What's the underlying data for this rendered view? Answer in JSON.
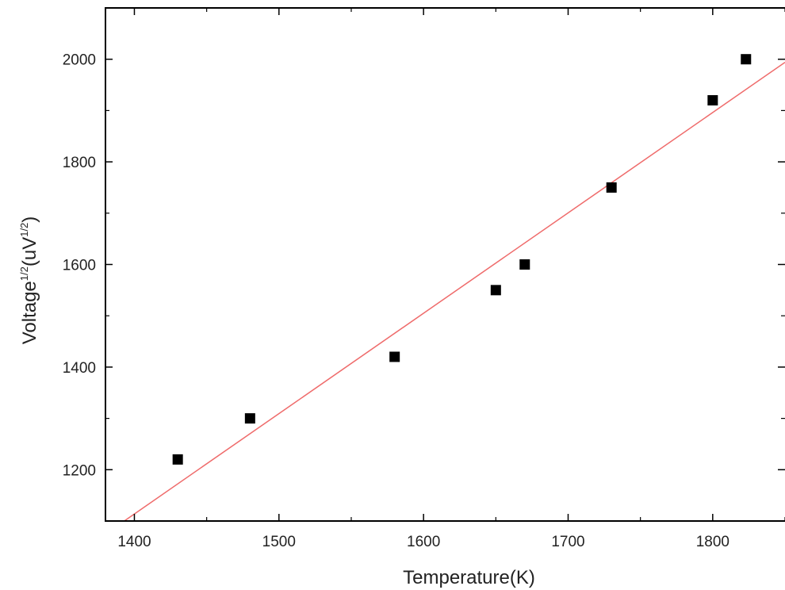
{
  "chart_data": {
    "type": "scatter",
    "xlabel": "Temperature(K)",
    "ylabel": {
      "base": "Voltage",
      "sup1": "1/2",
      "mid": "(uV",
      "sup2": "1/2",
      "end": ")"
    },
    "xlim": [
      1380,
      1850
    ],
    "ylim": [
      1100,
      2100
    ],
    "xticks": [
      1400,
      1500,
      1600,
      1700,
      1800
    ],
    "yticks": [
      1200,
      1400,
      1600,
      1800,
      2000
    ],
    "xtick_labels": [
      "1400",
      "1500",
      "1600",
      "1700",
      "1800"
    ],
    "ytick_labels": [
      "1200",
      "1400",
      "1600",
      "1800",
      "2000"
    ],
    "series": [
      {
        "kind": "points",
        "marker": "square",
        "color": "#000000",
        "x": [
          1430,
          1480,
          1580,
          1650,
          1670,
          1730,
          1800,
          1823
        ],
        "y": [
          1220,
          1300,
          1420,
          1550,
          1600,
          1750,
          1920,
          2000
        ]
      },
      {
        "kind": "fit-line",
        "color": "#ef6b6b",
        "x": [
          1393,
          1850
        ],
        "y": [
          1100,
          1994
        ]
      }
    ],
    "grid": false,
    "legend": "none"
  }
}
